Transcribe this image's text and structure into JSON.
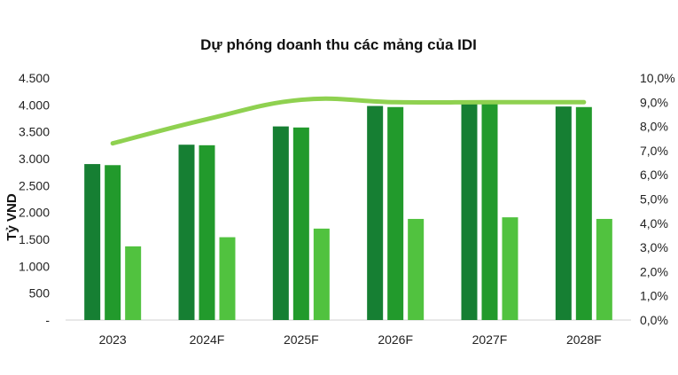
{
  "chart_data": {
    "type": "bar",
    "title": "Dự phóng doanh thu các mảng của IDI",
    "ylabel": "Tỷ VND",
    "categories": [
      "2023",
      "2024F",
      "2025F",
      "2026F",
      "2027F",
      "2028F"
    ],
    "ylim": [
      0,
      4500
    ],
    "y_ticks": [
      "-",
      "500",
      "1.000",
      "1.500",
      "2.000",
      "2.500",
      "3.000",
      "3.500",
      "4.000",
      "4.500"
    ],
    "y2lim": [
      0,
      10
    ],
    "y2_ticks": [
      "0,0%",
      "1,0%",
      "2,0%",
      "3,0%",
      "4,0%",
      "5,0%",
      "6,0%",
      "7,0%",
      "8,0%",
      "9,0%",
      "10,0%"
    ],
    "grid": false,
    "legend": "none",
    "series": [
      {
        "type": "bar",
        "axis": "left",
        "color": "#167f33",
        "values": [
          2900,
          3260,
          3600,
          3980,
          4030,
          3970
        ]
      },
      {
        "type": "bar",
        "axis": "left",
        "color": "#229a2c",
        "values": [
          2880,
          3250,
          3580,
          3960,
          4020,
          3960
        ]
      },
      {
        "type": "bar",
        "axis": "left",
        "color": "#51c23f",
        "values": [
          1370,
          1540,
          1700,
          1880,
          1910,
          1880
        ]
      },
      {
        "type": "line",
        "axis": "right",
        "color": "#8fd150",
        "values": [
          7.3,
          8.3,
          9.1,
          9.0,
          9.0,
          9.0
        ]
      }
    ]
  }
}
